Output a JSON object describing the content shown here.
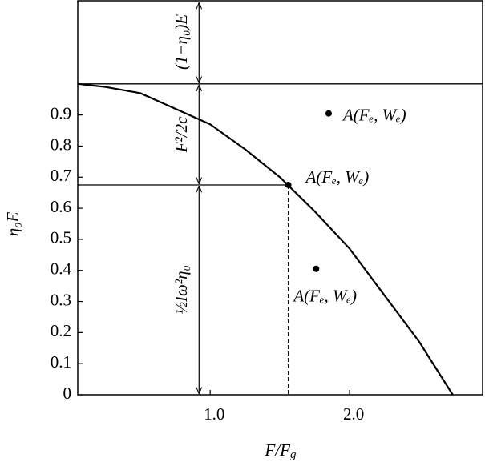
{
  "chart_data": {
    "type": "line",
    "x_label": [
      "F/F",
      "g"
    ],
    "y_label": "η₀E",
    "xlim": [
      0.05,
      2.96
    ],
    "ylim": [
      0,
      1.27
    ],
    "xticks": [
      {
        "value": 1,
        "label": "1.0"
      },
      {
        "value": 2,
        "label": "2.0"
      }
    ],
    "yticks": [
      0,
      0.1,
      0.2,
      0.3,
      0.4,
      0.5,
      0.6,
      0.7,
      0.8,
      0.9
    ],
    "color": "#000000",
    "x": [
      0.05,
      0.25,
      0.5,
      0.75,
      1.0,
      1.25,
      1.5,
      1.75,
      2.0,
      2.25,
      2.5,
      2.74
    ],
    "values": [
      1.0,
      0.99,
      0.97,
      0.92,
      0.87,
      0.79,
      0.7,
      0.59,
      0.47,
      0.32,
      0.17,
      0
    ],
    "reference_y": 1.0,
    "dimension_x": 0.92,
    "points": {
      "x": [
        1.56,
        1.85,
        1.76
      ],
      "y": [
        0.675,
        0.905,
        0.405
      ],
      "labels": [
        "A(Fₑ, Wₑ)",
        "A(Fₑ, Wₑ)",
        "A(Fₑ, Wₑ)"
      ]
    },
    "annotations": [
      "(1−η₀)E",
      "F²/2c",
      "½Iω²η₀"
    ]
  }
}
